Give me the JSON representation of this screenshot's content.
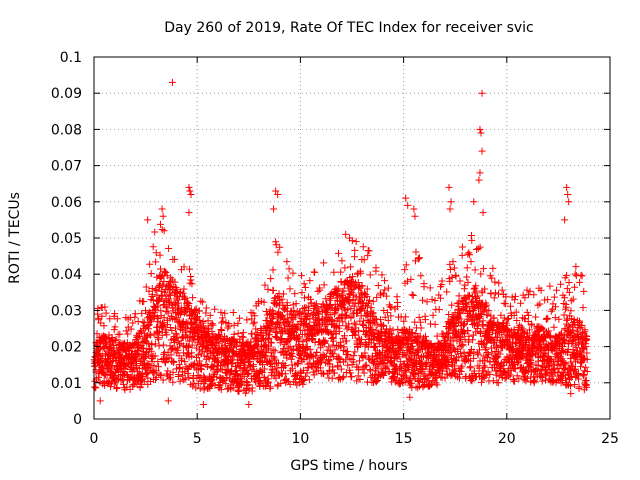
{
  "chart_data": {
    "type": "scatter",
    "title": "Day 260 of 2019, Rate Of TEC Index for receiver svic",
    "xlabel": "GPS time / hours",
    "ylabel": "ROTI / TECUs",
    "xlim": [
      0,
      25
    ],
    "ylim": [
      0,
      0.1
    ],
    "x_ticks": [
      0,
      5,
      10,
      15,
      20,
      25
    ],
    "x_tick_labels": [
      "0",
      "5",
      "10",
      "15",
      "20",
      "25"
    ],
    "y_ticks": [
      0,
      0.01,
      0.02,
      0.03,
      0.04,
      0.05,
      0.06,
      0.07,
      0.08,
      0.09,
      0.1
    ],
    "y_tick_labels": [
      "0",
      "0.01",
      "0.02",
      "0.03",
      "0.04",
      "0.05",
      "0.06",
      "0.07",
      "0.08",
      "0.09",
      "0.1"
    ],
    "grid": true,
    "marker": "+",
    "color": "#ff0000",
    "series": [
      {
        "name": "ROTI",
        "envelope_hours": [
          0,
          0.5,
          1.0,
          1.5,
          2.0,
          2.5,
          2.8,
          3.2,
          3.6,
          4.0,
          4.5,
          5.0,
          5.5,
          6.0,
          6.5,
          7.0,
          7.5,
          8.0,
          8.5,
          8.8,
          9.2,
          9.8,
          10.5,
          11.0,
          11.5,
          12.0,
          12.5,
          13.0,
          13.5,
          14.0,
          14.5,
          15.0,
          15.5,
          16.0,
          16.5,
          17.0,
          17.5,
          18.0,
          18.5,
          19.0,
          19.5,
          20.0,
          20.5,
          21.0,
          21.5,
          22.0,
          22.5,
          23.0,
          23.5,
          23.9
        ],
        "envelope_low": [
          0.008,
          0.009,
          0.008,
          0.008,
          0.008,
          0.009,
          0.01,
          0.01,
          0.01,
          0.01,
          0.01,
          0.008,
          0.008,
          0.008,
          0.008,
          0.007,
          0.007,
          0.008,
          0.008,
          0.009,
          0.009,
          0.009,
          0.01,
          0.011,
          0.011,
          0.011,
          0.011,
          0.01,
          0.01,
          0.01,
          0.01,
          0.009,
          0.008,
          0.008,
          0.009,
          0.01,
          0.011,
          0.011,
          0.01,
          0.01,
          0.01,
          0.01,
          0.01,
          0.01,
          0.01,
          0.01,
          0.01,
          0.008,
          0.008,
          0.008
        ],
        "envelope_mean": [
          0.017,
          0.018,
          0.017,
          0.016,
          0.017,
          0.02,
          0.027,
          0.03,
          0.029,
          0.027,
          0.025,
          0.021,
          0.019,
          0.018,
          0.017,
          0.016,
          0.016,
          0.018,
          0.022,
          0.025,
          0.024,
          0.022,
          0.022,
          0.024,
          0.026,
          0.028,
          0.029,
          0.027,
          0.023,
          0.02,
          0.018,
          0.019,
          0.018,
          0.017,
          0.016,
          0.019,
          0.023,
          0.026,
          0.025,
          0.023,
          0.021,
          0.02,
          0.019,
          0.019,
          0.02,
          0.019,
          0.018,
          0.021,
          0.02,
          0.018
        ],
        "envelope_high": [
          0.03,
          0.032,
          0.03,
          0.028,
          0.03,
          0.04,
          0.05,
          0.055,
          0.052,
          0.048,
          0.044,
          0.036,
          0.032,
          0.03,
          0.03,
          0.029,
          0.029,
          0.034,
          0.042,
          0.05,
          0.046,
          0.04,
          0.04,
          0.044,
          0.048,
          0.052,
          0.053,
          0.05,
          0.045,
          0.04,
          0.035,
          0.045,
          0.05,
          0.04,
          0.034,
          0.04,
          0.046,
          0.052,
          0.05,
          0.045,
          0.04,
          0.036,
          0.034,
          0.036,
          0.04,
          0.038,
          0.036,
          0.045,
          0.044,
          0.038
        ],
        "outliers": [
          {
            "x": 3.8,
            "y": 0.093
          },
          {
            "x": 18.8,
            "y": 0.09
          },
          {
            "x": 18.7,
            "y": 0.08
          },
          {
            "x": 18.75,
            "y": 0.079
          },
          {
            "x": 18.8,
            "y": 0.074
          },
          {
            "x": 18.7,
            "y": 0.068
          },
          {
            "x": 18.65,
            "y": 0.066
          },
          {
            "x": 4.6,
            "y": 0.064
          },
          {
            "x": 4.65,
            "y": 0.063
          },
          {
            "x": 4.7,
            "y": 0.062
          },
          {
            "x": 4.6,
            "y": 0.057
          },
          {
            "x": 8.8,
            "y": 0.063
          },
          {
            "x": 8.9,
            "y": 0.062
          },
          {
            "x": 8.7,
            "y": 0.058
          },
          {
            "x": 15.1,
            "y": 0.061
          },
          {
            "x": 15.2,
            "y": 0.059
          },
          {
            "x": 15.5,
            "y": 0.058
          },
          {
            "x": 15.55,
            "y": 0.056
          },
          {
            "x": 17.2,
            "y": 0.064
          },
          {
            "x": 17.3,
            "y": 0.06
          },
          {
            "x": 17.25,
            "y": 0.058
          },
          {
            "x": 18.4,
            "y": 0.06
          },
          {
            "x": 18.85,
            "y": 0.057
          },
          {
            "x": 22.9,
            "y": 0.064
          },
          {
            "x": 22.95,
            "y": 0.062
          },
          {
            "x": 23.0,
            "y": 0.06
          },
          {
            "x": 22.8,
            "y": 0.055
          },
          {
            "x": 2.6,
            "y": 0.055
          },
          {
            "x": 3.3,
            "y": 0.058
          },
          {
            "x": 3.35,
            "y": 0.056
          },
          {
            "x": 3.4,
            "y": 0.052
          },
          {
            "x": 0.3,
            "y": 0.005
          },
          {
            "x": 3.6,
            "y": 0.005
          },
          {
            "x": 5.3,
            "y": 0.004
          },
          {
            "x": 7.5,
            "y": 0.004
          },
          {
            "x": 15.3,
            "y": 0.006
          },
          {
            "x": 23.1,
            "y": 0.007
          }
        ]
      }
    ]
  }
}
